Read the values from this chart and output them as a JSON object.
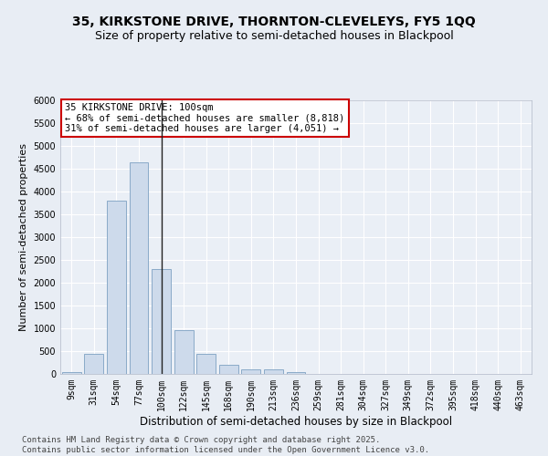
{
  "title1": "35, KIRKSTONE DRIVE, THORNTON-CLEVELEYS, FY5 1QQ",
  "title2": "Size of property relative to semi-detached houses in Blackpool",
  "xlabel": "Distribution of semi-detached houses by size in Blackpool",
  "ylabel": "Number of semi-detached properties",
  "categories": [
    "9sqm",
    "31sqm",
    "54sqm",
    "77sqm",
    "100sqm",
    "122sqm",
    "145sqm",
    "168sqm",
    "190sqm",
    "213sqm",
    "236sqm",
    "259sqm",
    "281sqm",
    "304sqm",
    "327sqm",
    "349sqm",
    "372sqm",
    "395sqm",
    "418sqm",
    "440sqm",
    "463sqm"
  ],
  "values": [
    50,
    450,
    3800,
    4650,
    2300,
    970,
    450,
    200,
    110,
    100,
    50,
    0,
    0,
    0,
    0,
    0,
    0,
    0,
    0,
    0,
    0
  ],
  "bar_color": "#cddaeb",
  "bar_edge_color": "#8aaac8",
  "highlight_bar_index": 4,
  "highlight_line_color": "#222222",
  "annotation_text": "35 KIRKSTONE DRIVE: 100sqm\n← 68% of semi-detached houses are smaller (8,818)\n31% of semi-detached houses are larger (4,051) →",
  "annotation_box_color": "#ffffff",
  "annotation_box_edge": "#cc0000",
  "ylim": [
    0,
    6000
  ],
  "yticks": [
    0,
    500,
    1000,
    1500,
    2000,
    2500,
    3000,
    3500,
    4000,
    4500,
    5000,
    5500,
    6000
  ],
  "footer_text": "Contains HM Land Registry data © Crown copyright and database right 2025.\nContains public sector information licensed under the Open Government Licence v3.0.",
  "bg_color": "#e8edf4",
  "plot_bg_color": "#eaeff6",
  "grid_color": "#ffffff",
  "title1_fontsize": 10,
  "title2_fontsize": 9,
  "tick_fontsize": 7,
  "ylabel_fontsize": 8,
  "xlabel_fontsize": 8.5,
  "footer_fontsize": 6.5,
  "annot_fontsize": 7.5
}
